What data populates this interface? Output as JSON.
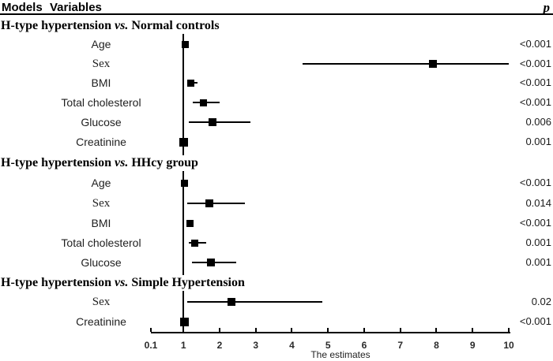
{
  "figure": {
    "column_headers": {
      "models": "Models",
      "variables": "Variables",
      "p": "p"
    },
    "colors": {
      "background": "#ffffff",
      "text": "#111111",
      "lines": "#000000",
      "markers": "#000000"
    }
  },
  "chart_data": {
    "type": "forest",
    "xlabel": "The estimates",
    "x_axis": {
      "min": 0.1,
      "max": 10,
      "ticks": [
        0.1,
        1,
        2,
        3,
        4,
        5,
        6,
        7,
        8,
        9,
        10
      ],
      "reference_line": 1,
      "scale": "linear"
    },
    "sections": [
      {
        "header_model": "H-type hypertension",
        "header_vs": "vs.",
        "header_group": "Normal controls",
        "rows": [
          {
            "label": "Age",
            "estimate": 1.05,
            "ci_low": null,
            "ci_high": null,
            "p": "<0.001",
            "marker": 9
          },
          {
            "label": "Sex",
            "estimate": 7.9,
            "ci_low": 4.3,
            "ci_high": 10.0,
            "p": "<0.001",
            "marker": 10
          },
          {
            "label": "BMI",
            "estimate": 1.2,
            "ci_low": 1.1,
            "ci_high": 1.4,
            "p": "<0.001",
            "marker": 9
          },
          {
            "label": "Total cholesterol",
            "estimate": 1.55,
            "ci_low": 1.25,
            "ci_high": 2.0,
            "p": "<0.001",
            "marker": 9
          },
          {
            "label": "Glucose",
            "estimate": 1.8,
            "ci_low": 1.15,
            "ci_high": 2.85,
            "p": "0.006",
            "marker": 10
          },
          {
            "label": "Creatinine",
            "estimate": 1.0,
            "ci_low": null,
            "ci_high": null,
            "p": "0.001",
            "marker": 11
          }
        ]
      },
      {
        "header_model": "H-type hypertension",
        "header_vs": "vs.",
        "header_group": "HHcy group",
        "rows": [
          {
            "label": "Age",
            "estimate": 1.02,
            "ci_low": null,
            "ci_high": null,
            "p": "<0.001",
            "marker": 9
          },
          {
            "label": "Sex",
            "estimate": 1.72,
            "ci_low": 1.1,
            "ci_high": 2.7,
            "p": "0.014",
            "marker": 10
          },
          {
            "label": "BMI",
            "estimate": 1.18,
            "ci_low": null,
            "ci_high": null,
            "p": "<0.001",
            "marker": 9
          },
          {
            "label": "Total cholesterol",
            "estimate": 1.32,
            "ci_low": 1.15,
            "ci_high": 1.62,
            "p": "0.001",
            "marker": 9
          },
          {
            "label": "Glucose",
            "estimate": 1.75,
            "ci_low": 1.23,
            "ci_high": 2.45,
            "p": "0.001",
            "marker": 10
          }
        ]
      },
      {
        "header_model": "H-type hypertension",
        "header_vs": "vs.",
        "header_group": "Simple Hypertension",
        "rows": [
          {
            "label": "Sex",
            "estimate": 2.32,
            "ci_low": 1.1,
            "ci_high": 4.85,
            "p": "0.02",
            "marker": 10
          },
          {
            "label": "Creatinine",
            "estimate": 1.02,
            "ci_low": null,
            "ci_high": null,
            "p": "<0.001",
            "marker": 11
          }
        ]
      }
    ]
  }
}
